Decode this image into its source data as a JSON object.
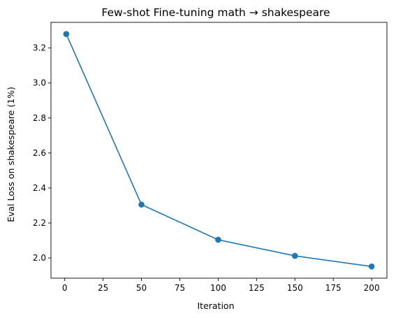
{
  "chart_data": {
    "type": "line",
    "title": "Few-shot Fine-tuning math → shakespeare",
    "xlabel": "Iteration",
    "ylabel": "Eval Loss on shakespeare (1%)",
    "x": [
      1,
      50,
      100,
      150,
      200
    ],
    "series": [
      {
        "values": [
          3.28,
          2.305,
          2.104,
          2.012,
          1.951
        ],
        "color": "#1f77b4",
        "marker": "circle"
      }
    ],
    "xlim": [
      -8.95,
      209.95
    ],
    "ylim": [
      1.8845,
      3.3465
    ],
    "xticks": [
      0,
      25,
      50,
      75,
      100,
      125,
      150,
      175,
      200
    ],
    "yticks": [
      2.0,
      2.2,
      2.4,
      2.6,
      2.8,
      3.0,
      3.2
    ],
    "ytick_labels": [
      "2.0",
      "2.2",
      "2.4",
      "2.6",
      "2.8",
      "3.0",
      "3.2"
    ],
    "grid": false,
    "legend": false
  }
}
